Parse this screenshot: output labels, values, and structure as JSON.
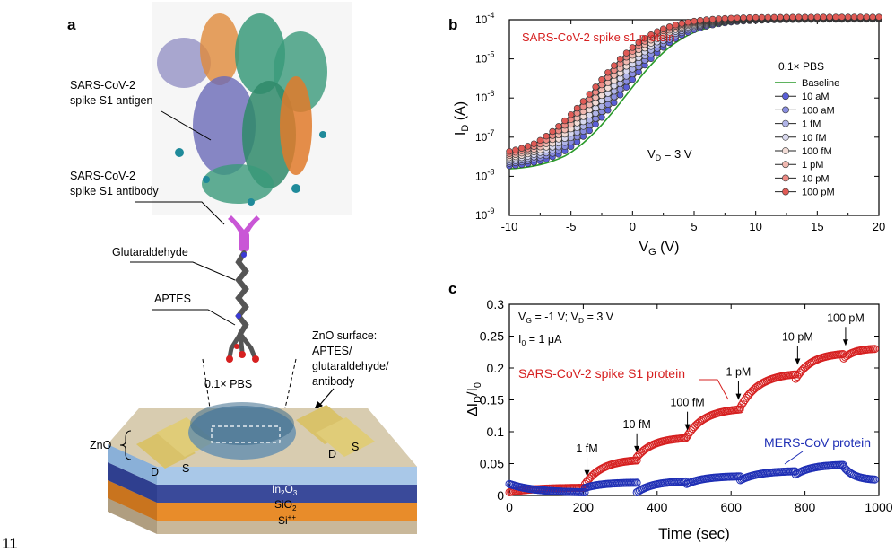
{
  "page_number": "11",
  "panel_a": {
    "label": "a",
    "antigen_label_1": "SARS-CoV-2",
    "antigen_label_2": "spike S1 antigen",
    "antibody_label_1": "SARS-CoV-2",
    "antibody_label_2": "spike S1 antibody",
    "glutaraldehyde_label": "Glutaraldehyde",
    "aptes_label": "APTES",
    "surface_label_1": "ZnO surface:",
    "surface_label_2": "APTES/",
    "surface_label_3": "glutaraldehyde/",
    "surface_label_4": "antibody",
    "pbs_label": "0.1× PBS",
    "zno_label": "ZnO",
    "d_label": "D",
    "s_label": "S",
    "in2o3_label": "In",
    "in2o3_sub": "2",
    "in2o3_tail": "O",
    "in2o3_sub2": "3",
    "sio2_label": "SiO",
    "sio2_sub": "2",
    "si_label": "Si",
    "si_sup": "++",
    "colors": {
      "antibody": "#c956d6",
      "in2o3": "#a9c8e8",
      "zno_layer": "#2f3f8f",
      "sio2": "#e88c2a",
      "si": "#c9b89a",
      "electrode": "#d9c26a"
    }
  },
  "chart_data": [
    {
      "panel": "b",
      "type": "line",
      "title": "SARS-CoV-2 spike s1 protein",
      "xlabel": "V",
      "xlabel_sub": "G",
      "xlabel_unit": " (V)",
      "ylabel": "I",
      "ylabel_sub": "D",
      "ylabel_unit": " (A)",
      "xlim": [
        -10,
        20
      ],
      "ylim_log10": [
        -9,
        -4
      ],
      "log_y": true,
      "x_ticks": [
        "-10",
        "-5",
        "0",
        "5",
        "10",
        "15",
        "20"
      ],
      "y_ticks": [
        {
          "base": "10",
          "exp": "-9"
        },
        {
          "base": "10",
          "exp": "-8"
        },
        {
          "base": "10",
          "exp": "-7"
        },
        {
          "base": "10",
          "exp": "-6"
        },
        {
          "base": "10",
          "exp": "-5"
        },
        {
          "base": "10",
          "exp": "-4"
        }
      ],
      "annotation": "V",
      "annotation_sub": "D",
      "annotation_tail": " = 3 V",
      "legend_title": "0.1× PBS",
      "legend_position": "right",
      "series": [
        {
          "name": "Baseline",
          "color": "#2a9a2a",
          "marker": false,
          "vmin": -5.3,
          "smin": -8.25
        },
        {
          "name": "10 aM",
          "color": "#5a5fd6",
          "marker": true,
          "vmin": -5.7,
          "smin": -8.18
        },
        {
          "name": "100 aM",
          "color": "#8a8ee0",
          "marker": true,
          "vmin": -6.0,
          "smin": -8.12
        },
        {
          "name": "1 fM",
          "color": "#b0b4e8",
          "marker": true,
          "vmin": -6.3,
          "smin": -8.08
        },
        {
          "name": "10 fM",
          "color": "#d8d8ee",
          "marker": true,
          "vmin": -6.6,
          "smin": -8.04
        },
        {
          "name": "100 fM",
          "color": "#f2dcd6",
          "marker": true,
          "vmin": -6.9,
          "smin": -8.0
        },
        {
          "name": "1 pM",
          "color": "#f0b8b0",
          "marker": true,
          "vmin": -7.2,
          "smin": -7.96
        },
        {
          "name": "10 pM",
          "color": "#ec8a84",
          "marker": true,
          "vmin": -7.5,
          "smin": -7.92
        },
        {
          "name": "100 pM",
          "color": "#e05a55",
          "marker": true,
          "vmin": -7.8,
          "smin": -7.88
        }
      ]
    },
    {
      "panel": "c",
      "type": "scatter",
      "xlabel": "Time (sec)",
      "ylabel": "ΔI",
      "ylabel_sub": "D",
      "ylabel_tail": "/I",
      "ylabel_sub2": "0",
      "xlim": [
        0,
        1000
      ],
      "ylim": [
        0,
        0.3
      ],
      "x_ticks": [
        "0",
        "200",
        "400",
        "600",
        "800",
        "1000"
      ],
      "y_ticks": [
        "0",
        "0.05",
        "0.1",
        "0.15",
        "0.2",
        "0.25",
        "0.3"
      ],
      "condition_1": "V",
      "condition_1_sub": "G",
      "condition_1_mid": " = -1 V; V",
      "condition_1_sub2": "D",
      "condition_1_tail": " = 3 V",
      "condition_2": "I",
      "condition_2_sub": "0",
      "condition_2_tail": " = 1 μA",
      "series": [
        {
          "name": "SARS-CoV-2 spike S1 protein",
          "color": "#d62020",
          "steps": [
            {
              "t0": 0,
              "t1": 205,
              "y0": 0.005,
              "y1": 0.012
            },
            {
              "t0": 205,
              "t1": 345,
              "y0": 0.018,
              "y1": 0.055
            },
            {
              "t0": 345,
              "t1": 480,
              "y0": 0.06,
              "y1": 0.09
            },
            {
              "t0": 480,
              "t1": 625,
              "y0": 0.092,
              "y1": 0.135
            },
            {
              "t0": 625,
              "t1": 775,
              "y0": 0.138,
              "y1": 0.19
            },
            {
              "t0": 775,
              "t1": 905,
              "y0": 0.183,
              "y1": 0.222
            },
            {
              "t0": 905,
              "t1": 990,
              "y0": 0.215,
              "y1": 0.23
            }
          ]
        },
        {
          "name": "MERS-CoV protein",
          "color": "#1f2fb5",
          "steps": [
            {
              "t0": 0,
              "t1": 205,
              "y0": 0.018,
              "y1": 0.005
            },
            {
              "t0": 205,
              "t1": 345,
              "y0": 0.012,
              "y1": 0.02
            },
            {
              "t0": 345,
              "t1": 480,
              "y0": 0.005,
              "y1": 0.022
            },
            {
              "t0": 480,
              "t1": 625,
              "y0": 0.018,
              "y1": 0.03
            },
            {
              "t0": 625,
              "t1": 775,
              "y0": 0.024,
              "y1": 0.038
            },
            {
              "t0": 775,
              "t1": 905,
              "y0": 0.033,
              "y1": 0.048
            },
            {
              "t0": 905,
              "t1": 990,
              "y0": 0.045,
              "y1": 0.025
            }
          ]
        }
      ],
      "injections": [
        {
          "label": "1 fM",
          "t": 210,
          "y": 0.02
        },
        {
          "label": "10 fM",
          "t": 345,
          "y": 0.058
        },
        {
          "label": "100 fM",
          "t": 482,
          "y": 0.092
        },
        {
          "label": "1 pM",
          "t": 620,
          "y": 0.14
        },
        {
          "label": "10 pM",
          "t": 780,
          "y": 0.195
        },
        {
          "label": "100 pM",
          "t": 910,
          "y": 0.225
        }
      ]
    }
  ],
  "panel_b": {
    "label": "b"
  },
  "panel_c": {
    "label": "c"
  }
}
